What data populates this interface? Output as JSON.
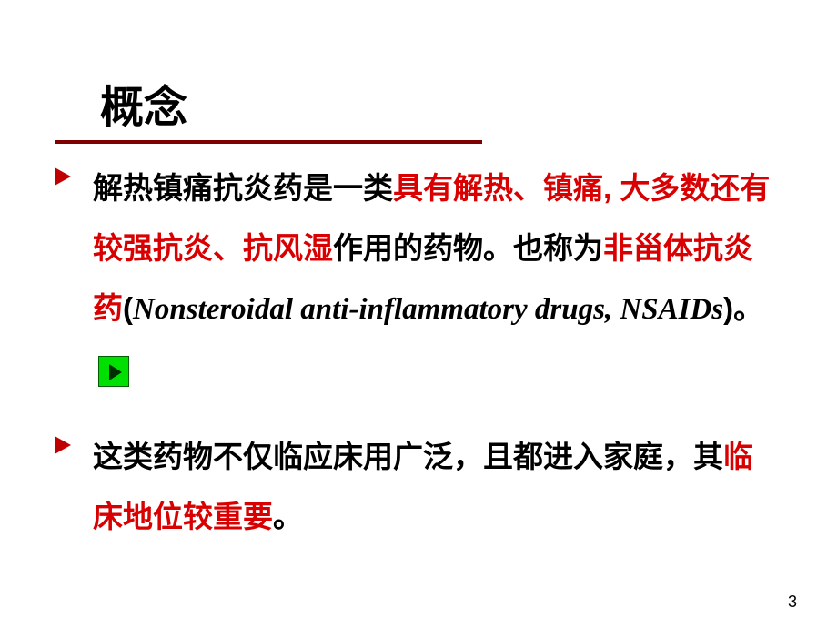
{
  "title": "概念",
  "title_underline_color": "#7f0000",
  "bullets": [
    {
      "segments": [
        {
          "text": "解热镇痛抗炎药是一类",
          "cls": ""
        },
        {
          "text": "具有解热、镇痛, 大多数还有较强抗炎、抗风湿",
          "cls": "red"
        },
        {
          "text": "作用的药物。也称为",
          "cls": ""
        },
        {
          "text": "非甾体抗炎药",
          "cls": "red"
        },
        {
          "text": "(",
          "cls": "bold"
        },
        {
          "text": "Nonsteroidal anti-inflammatory drugs, NSAIDs",
          "cls": "italic bold"
        },
        {
          "text": ")",
          "cls": "bold"
        },
        {
          "text": "。",
          "cls": ""
        }
      ],
      "has_play": true
    },
    {
      "segments": [
        {
          "text": "这类药物不仅临应床用广泛，且都进入家庭，其",
          "cls": ""
        },
        {
          "text": "临床地位较重要",
          "cls": "red"
        },
        {
          "text": "。",
          "cls": ""
        }
      ],
      "has_play": false
    }
  ],
  "page_number": "3",
  "colors": {
    "red_text": "#d80000",
    "black_text": "#000000",
    "bullet_marker": "#c00000",
    "play_bg": "#00e000",
    "play_arrow": "#003000",
    "background": "#ffffff"
  },
  "typography": {
    "title_fontsize": 48,
    "body_fontsize": 33,
    "pagenum_fontsize": 18
  }
}
